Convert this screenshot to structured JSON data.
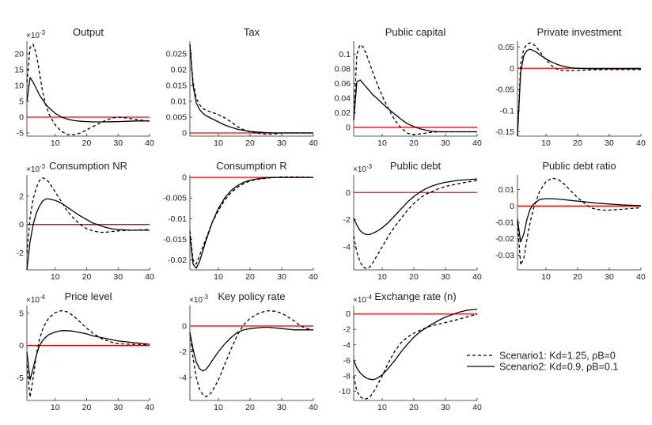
{
  "colors": {
    "zero_line": "#ff0000",
    "series": "#000000",
    "axis": "#262626"
  },
  "legend": {
    "entries": [
      {
        "label": "Scenario1: Kd=1.25, ρB=0",
        "style": "dashed"
      },
      {
        "label": "Scenario2: Kd=0.9, ρB=0.1",
        "style": "solid"
      }
    ]
  },
  "chart_data": [
    {
      "type": "line",
      "title": "Output",
      "exponent": "-3",
      "xlim": [
        1,
        40
      ],
      "ylim": [
        -6,
        24
      ],
      "xticks": [
        10,
        20,
        30,
        40
      ],
      "yticks": [
        -5,
        0,
        5,
        10,
        15,
        20
      ],
      "x": [
        1,
        2,
        3,
        4,
        5,
        6,
        7,
        8,
        10,
        12,
        14,
        16,
        18,
        20,
        22,
        25,
        28,
        30,
        33,
        36,
        40
      ],
      "series": [
        {
          "name": "Scenario1",
          "values": [
            11,
            22,
            23,
            20,
            14,
            8,
            4,
            1,
            -2.5,
            -4.5,
            -5.5,
            -5.6,
            -5,
            -4,
            -3,
            -1.5,
            -0.3,
            0,
            -0.3,
            -0.8,
            -1.3
          ]
        },
        {
          "name": "Scenario2",
          "values": [
            5,
            12.5,
            11,
            9,
            7,
            5.5,
            4,
            3,
            1.2,
            0,
            -0.7,
            -1.1,
            -1.3,
            -1.4,
            -1.5,
            -1.5,
            -1.45,
            -1.4,
            -1.3,
            -1.2,
            -1.2
          ]
        }
      ]
    },
    {
      "type": "line",
      "title": "Tax",
      "exponent": "",
      "xlim": [
        1,
        40
      ],
      "ylim": [
        -0.001,
        0.029
      ],
      "xticks": [
        10,
        20,
        30,
        40
      ],
      "yticks": [
        0,
        0.005,
        0.01,
        0.015,
        0.02,
        0.025
      ],
      "x": [
        1,
        2,
        3,
        4,
        5,
        6,
        8,
        10,
        12,
        14,
        16,
        18,
        20,
        22,
        25,
        28,
        30,
        34,
        40
      ],
      "series": [
        {
          "name": "Scenario1",
          "values": [
            0.028,
            0.016,
            0.011,
            0.009,
            0.0078,
            0.0072,
            0.0065,
            0.0058,
            0.0048,
            0.0035,
            0.002,
            0.001,
            0.0003,
            0,
            -0.0004,
            -0.0003,
            0,
            0,
            0
          ]
        },
        {
          "name": "Scenario2",
          "values": [
            0.028,
            0.015,
            0.0095,
            0.0075,
            0.0063,
            0.0055,
            0.0045,
            0.0035,
            0.0025,
            0.0018,
            0.0012,
            0.0008,
            0.0005,
            0.0003,
            0.0001,
            0,
            0,
            0,
            0
          ]
        }
      ]
    },
    {
      "type": "line",
      "title": "Public capital",
      "exponent": "",
      "xlim": [
        1,
        40
      ],
      "ylim": [
        -0.012,
        0.118
      ],
      "xticks": [
        10,
        20,
        30,
        40
      ],
      "yticks": [
        0,
        0.02,
        0.04,
        0.06,
        0.08,
        0.1
      ],
      "x": [
        1,
        2,
        3,
        4,
        5,
        6,
        7,
        8,
        10,
        12,
        14,
        16,
        18,
        20,
        22,
        25,
        28,
        30,
        34,
        40
      ],
      "series": [
        {
          "name": "Scenario1",
          "values": [
            0.01,
            0.1,
            0.113,
            0.11,
            0.1,
            0.088,
            0.076,
            0.064,
            0.043,
            0.025,
            0.01,
            -0.001,
            -0.008,
            -0.01,
            -0.009,
            -0.007,
            -0.006,
            -0.006,
            -0.006,
            -0.006
          ]
        },
        {
          "name": "Scenario2",
          "values": [
            0.01,
            0.062,
            0.065,
            0.06,
            0.055,
            0.05,
            0.045,
            0.041,
            0.033,
            0.025,
            0.018,
            0.011,
            0.005,
            0.001,
            -0.002,
            -0.005,
            -0.006,
            -0.006,
            -0.006,
            -0.006
          ]
        }
      ]
    },
    {
      "type": "line",
      "title": "Private investment",
      "exponent": "",
      "xlim": [
        1,
        40
      ],
      "ylim": [
        -0.16,
        0.064
      ],
      "xticks": [
        10,
        20,
        30,
        40
      ],
      "yticks": [
        -0.15,
        -0.1,
        -0.05,
        0,
        0.05
      ],
      "x": [
        1,
        2,
        3,
        4,
        5,
        6,
        7,
        8,
        9,
        10,
        12,
        14,
        16,
        18,
        20,
        24,
        28,
        32,
        36,
        40
      ],
      "series": [
        {
          "name": "Scenario1",
          "values": [
            -0.16,
            0.01,
            0.045,
            0.057,
            0.06,
            0.057,
            0.05,
            0.04,
            0.03,
            0.02,
            0.005,
            -0.004,
            -0.006,
            -0.006,
            -0.005,
            -0.004,
            -0.003,
            -0.003,
            -0.003,
            -0.003
          ]
        },
        {
          "name": "Scenario2",
          "values": [
            -0.16,
            -0.01,
            0.03,
            0.042,
            0.045,
            0.042,
            0.038,
            0.032,
            0.027,
            0.022,
            0.014,
            0.008,
            0.004,
            0.001,
            0,
            -0.001,
            -0.001,
            -0.001,
            -0.001,
            -0.001
          ]
        }
      ]
    },
    {
      "type": "line",
      "title": "Consumption NR",
      "exponent": "-3",
      "xlim": [
        1,
        40
      ],
      "ylim": [
        -3.2,
        3.5
      ],
      "xticks": [
        10,
        20,
        30,
        40
      ],
      "yticks": [
        -2,
        0,
        2
      ],
      "x": [
        1,
        2,
        3,
        4,
        5,
        6,
        7,
        8,
        10,
        12,
        14,
        16,
        18,
        20,
        22,
        24,
        26,
        28,
        30,
        34,
        40
      ],
      "series": [
        {
          "name": "Scenario1",
          "values": [
            -2,
            0.5,
            1.8,
            2.6,
            3.1,
            3.3,
            3.2,
            3,
            2.3,
            1.6,
            0.9,
            0.4,
            0,
            -0.3,
            -0.45,
            -0.55,
            -0.55,
            -0.5,
            -0.45,
            -0.4,
            -0.35
          ]
        },
        {
          "name": "Scenario2",
          "values": [
            -3.2,
            -1.2,
            0,
            0.8,
            1.3,
            1.65,
            1.8,
            1.8,
            1.7,
            1.5,
            1.2,
            0.9,
            0.6,
            0.35,
            0.1,
            -0.05,
            -0.2,
            -0.3,
            -0.35,
            -0.4,
            -0.4
          ]
        }
      ]
    },
    {
      "type": "line",
      "title": "Consumption R",
      "exponent": "",
      "xlim": [
        1,
        40
      ],
      "ylim": [
        -0.0224,
        0.0006
      ],
      "xticks": [
        10,
        20,
        30,
        40
      ],
      "yticks": [
        -0.02,
        -0.015,
        -0.01,
        -0.005,
        0
      ],
      "x": [
        1,
        2,
        3,
        4,
        5,
        6,
        8,
        10,
        12,
        14,
        16,
        18,
        20,
        22,
        25,
        28,
        30,
        34,
        40
      ],
      "series": [
        {
          "name": "Scenario1",
          "values": [
            -0.013,
            -0.02,
            -0.021,
            -0.019,
            -0.017,
            -0.015,
            -0.011,
            -0.008,
            -0.0055,
            -0.0037,
            -0.0024,
            -0.0015,
            -0.0009,
            -0.0005,
            -0.0002,
            0,
            0.0001,
            0.0001,
            0
          ]
        },
        {
          "name": "Scenario2",
          "values": [
            -0.014,
            -0.021,
            -0.022,
            -0.0205,
            -0.018,
            -0.0155,
            -0.011,
            -0.0075,
            -0.005,
            -0.0032,
            -0.002,
            -0.0012,
            -0.0007,
            -0.0004,
            -0.0001,
            0,
            0,
            0,
            0
          ]
        }
      ]
    },
    {
      "type": "line",
      "title": "Public debt",
      "exponent": "-3",
      "xlim": [
        1,
        40
      ],
      "ylim": [
        -5.7,
        1.3
      ],
      "xticks": [
        10,
        20,
        30,
        40
      ],
      "yticks": [
        -4,
        -2,
        0
      ],
      "x": [
        1,
        2,
        3,
        4,
        5,
        6,
        7,
        8,
        10,
        12,
        14,
        16,
        18,
        20,
        22,
        24,
        26,
        28,
        30,
        34,
        40
      ],
      "series": [
        {
          "name": "Scenario1",
          "values": [
            -3.2,
            -4.4,
            -5.1,
            -5.5,
            -5.6,
            -5.5,
            -5.2,
            -4.8,
            -4,
            -3.2,
            -2.5,
            -1.9,
            -1.3,
            -0.8,
            -0.4,
            -0.1,
            0.1,
            0.3,
            0.45,
            0.65,
            0.9
          ]
        },
        {
          "name": "Scenario2",
          "values": [
            -1.9,
            -2.4,
            -2.8,
            -3,
            -3.1,
            -3.1,
            -3,
            -2.9,
            -2.6,
            -2.2,
            -1.7,
            -1.2,
            -0.7,
            -0.3,
            0.05,
            0.3,
            0.5,
            0.65,
            0.75,
            0.9,
            1
          ]
        }
      ]
    },
    {
      "type": "line",
      "title": "Public debt ratio",
      "exponent": "",
      "xlim": [
        1,
        40
      ],
      "ylim": [
        -0.039,
        0.019
      ],
      "xticks": [
        10,
        20,
        30,
        40
      ],
      "yticks": [
        -0.03,
        -0.02,
        -0.01,
        0,
        0.01
      ],
      "x": [
        1,
        2,
        3,
        4,
        5,
        6,
        8,
        10,
        12,
        14,
        16,
        18,
        20,
        22,
        24,
        26,
        28,
        30,
        34,
        40
      ],
      "series": [
        {
          "name": "Scenario1",
          "values": [
            -0.01,
            -0.036,
            -0.032,
            -0.02,
            -0.01,
            -0.002,
            0.009,
            0.015,
            0.017,
            0.016,
            0.013,
            0.009,
            0.005,
            0.002,
            -0.001,
            -0.002,
            -0.0025,
            -0.0025,
            -0.002,
            -0.001
          ]
        },
        {
          "name": "Scenario2",
          "values": [
            -0.008,
            -0.022,
            -0.017,
            -0.008,
            -0.002,
            0.001,
            0.004,
            0.0045,
            0.0045,
            0.0042,
            0.0038,
            0.0034,
            0.003,
            0.0026,
            0.0022,
            0.0018,
            0.0015,
            0.0012,
            0.0007,
            0.0002
          ]
        }
      ]
    },
    {
      "type": "line",
      "title": "Price level",
      "exponent": "-4",
      "xlim": [
        1,
        40
      ],
      "ylim": [
        -8.5,
        6.2
      ],
      "xticks": [
        10,
        20,
        30,
        40
      ],
      "yticks": [
        -5,
        0,
        5
      ],
      "x": [
        1,
        2,
        3,
        4,
        5,
        6,
        7,
        8,
        10,
        12,
        14,
        16,
        18,
        20,
        22,
        25,
        28,
        30,
        34,
        40
      ],
      "series": [
        {
          "name": "Scenario1",
          "values": [
            -3,
            -8,
            -5,
            -1.5,
            1,
            2.5,
            3.5,
            4.3,
            5.1,
            5.4,
            5.2,
            4.5,
            3.6,
            2.7,
            1.9,
            1,
            0.5,
            0.3,
            0.2,
            0.1
          ]
        },
        {
          "name": "Scenario2",
          "values": [
            -1,
            -5.3,
            -3.5,
            -1.5,
            0,
            0.8,
            1.3,
            1.7,
            2.1,
            2.3,
            2.3,
            2.2,
            2,
            1.8,
            1.5,
            1.2,
            0.9,
            0.7,
            0.5,
            0.2
          ]
        }
      ]
    },
    {
      "type": "line",
      "title": "Key policy rate",
      "exponent": "-3",
      "xlim": [
        1,
        40
      ],
      "ylim": [
        -5.8,
        1.6
      ],
      "xticks": [
        10,
        20,
        30,
        40
      ],
      "yticks": [
        -4,
        -2,
        0
      ],
      "x": [
        1,
        2,
        3,
        4,
        5,
        6,
        7,
        8,
        10,
        12,
        14,
        16,
        18,
        20,
        22,
        24,
        26,
        28,
        30,
        32,
        34,
        36,
        38,
        40
      ],
      "series": [
        {
          "name": "Scenario1",
          "values": [
            -0.5,
            -2.5,
            -4,
            -4.9,
            -5.3,
            -5.5,
            -5.4,
            -5.1,
            -4.2,
            -3,
            -1.8,
            -0.7,
            0.1,
            0.6,
            0.9,
            1.1,
            1.2,
            1.15,
            1,
            0.7,
            0.4,
            0,
            -0.2,
            -0.3
          ]
        },
        {
          "name": "Scenario2",
          "values": [
            -0.5,
            -1.8,
            -2.8,
            -3.3,
            -3.5,
            -3.4,
            -3.1,
            -2.7,
            -2,
            -1.4,
            -0.9,
            -0.5,
            -0.3,
            -0.2,
            -0.15,
            -0.1,
            -0.1,
            -0.15,
            -0.2,
            -0.25,
            -0.3,
            -0.3,
            -0.3,
            -0.3
          ]
        }
      ]
    },
    {
      "type": "line",
      "title": "Exchange rate (n)",
      "exponent": "-4",
      "xlim": [
        1,
        40
      ],
      "ylim": [
        -11.2,
        1.1
      ],
      "xticks": [
        10,
        20,
        30,
        40
      ],
      "yticks": [
        -10,
        -8,
        -6,
        -4,
        -2,
        0
      ],
      "x": [
        1,
        2,
        3,
        4,
        5,
        6,
        7,
        8,
        10,
        12,
        14,
        16,
        18,
        20,
        22,
        25,
        28,
        30,
        34,
        37,
        40
      ],
      "series": [
        {
          "name": "Scenario1",
          "values": [
            -8,
            -10,
            -10.7,
            -11,
            -11,
            -10.8,
            -10.3,
            -9.6,
            -8,
            -6.3,
            -4.8,
            -3.7,
            -3,
            -2.5,
            -2.1,
            -1.6,
            -1.3,
            -1.1,
            -0.7,
            -0.35,
            -0.05
          ]
        },
        {
          "name": "Scenario2",
          "values": [
            -6,
            -7,
            -7.6,
            -8,
            -8.3,
            -8.45,
            -8.5,
            -8.4,
            -7.9,
            -7,
            -6,
            -4.9,
            -3.9,
            -3,
            -2.3,
            -1.5,
            -0.8,
            -0.4,
            0.2,
            0.5,
            0.6
          ]
        }
      ]
    }
  ]
}
